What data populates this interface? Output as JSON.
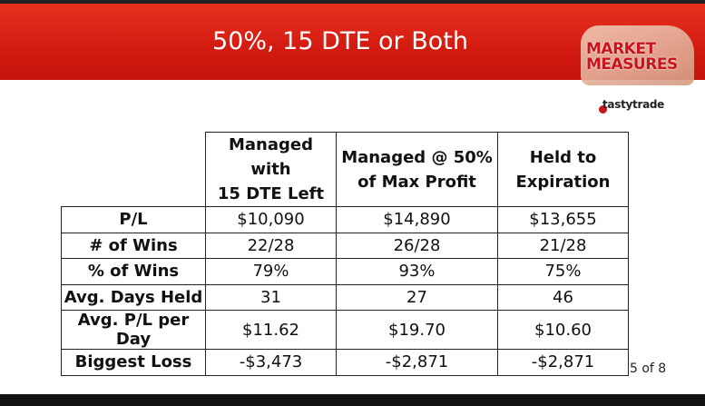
{
  "header": {
    "title": "50%, 15 DTE or Both",
    "logo": {
      "line1": "MARKET",
      "line2": "MEASURES"
    },
    "brand": "tastytrade"
  },
  "table": {
    "headers": [
      "Managed with\n15 DTE Left",
      "Managed @ 50%\nof Max Profit",
      "Held to\nExpiration"
    ],
    "rows": [
      [
        "P/L",
        "$10,090",
        "$14,890",
        "$13,655"
      ],
      [
        "# of Wins",
        "22/28",
        "26/28",
        "21/28"
      ],
      [
        "% of Wins",
        "79%",
        "93%",
        "75%"
      ],
      [
        "Avg. Days Held",
        "31",
        "27",
        "46"
      ],
      [
        "Avg. P/L per Day",
        "$11.62",
        "$19.70",
        "$10.60"
      ],
      [
        "Biggest Loss",
        "-$3,473",
        "-$2,871",
        "-$2,871"
      ]
    ]
  },
  "footer": {
    "page": "5 of 8"
  }
}
